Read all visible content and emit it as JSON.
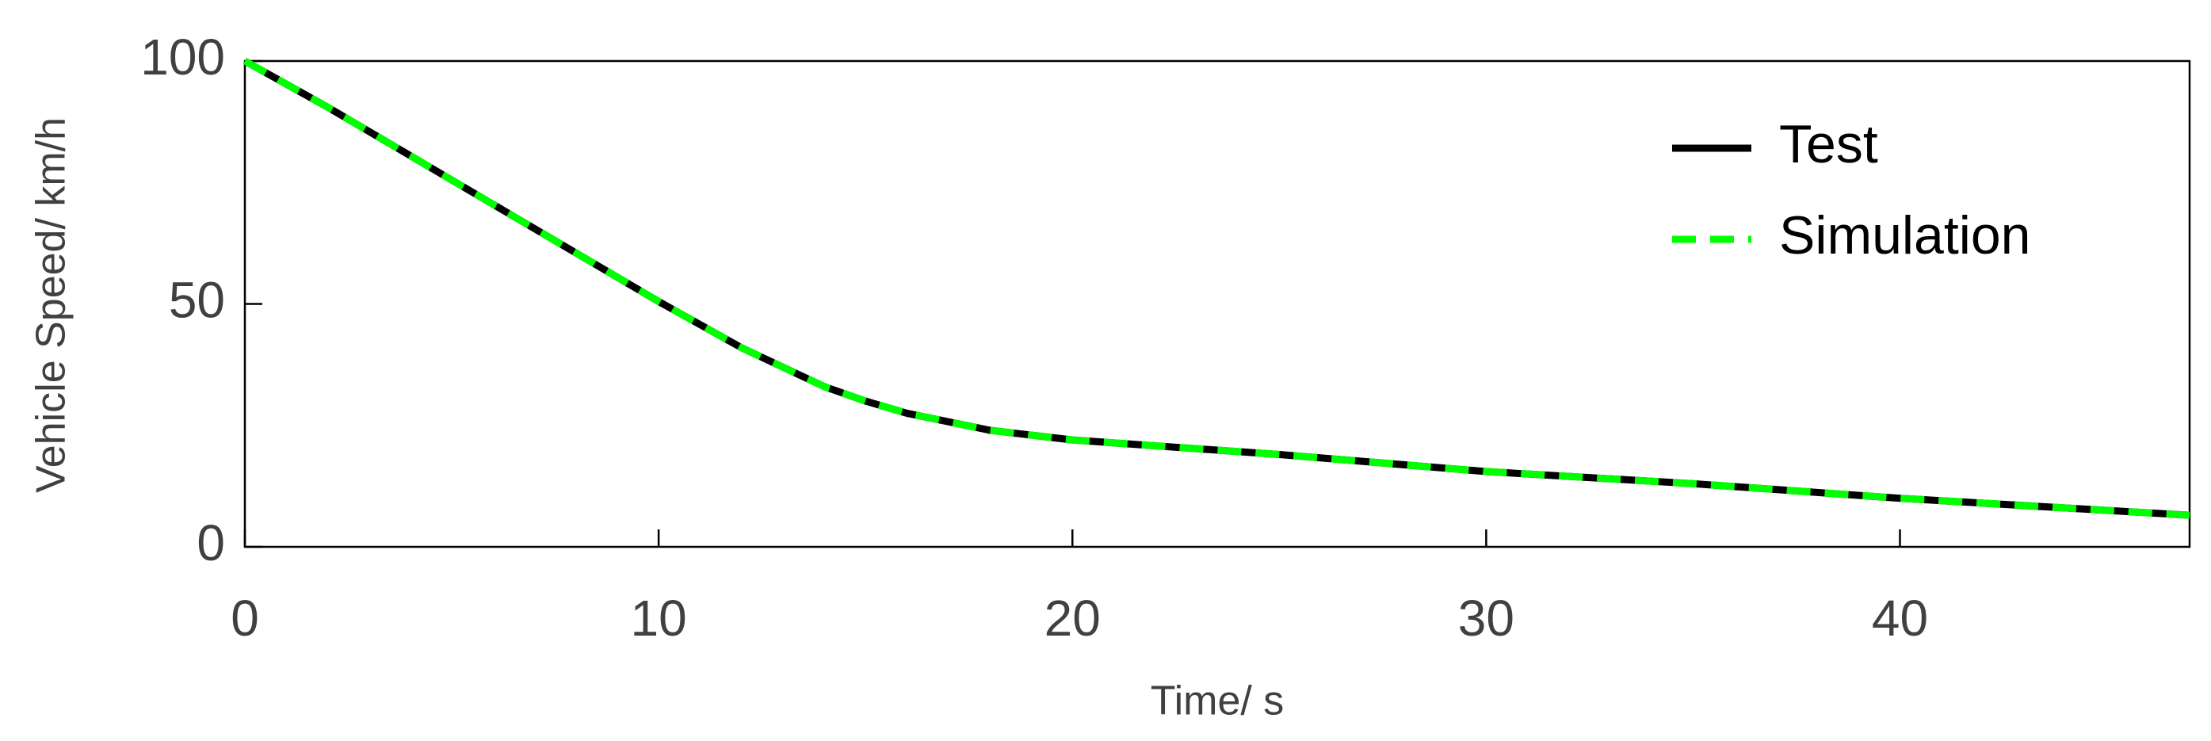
{
  "chart_data": {
    "type": "line",
    "xlabel": "Time/ s",
    "ylabel": "Vehicle Speed/ km/h",
    "x": [
      0,
      2,
      4,
      6,
      8,
      10,
      12,
      13,
      14,
      15,
      16,
      18,
      20,
      25,
      30,
      35,
      40,
      45,
      47
    ],
    "series": [
      {
        "name": "Test",
        "color": "#000000",
        "dash": false,
        "values": [
          100,
          90.5,
          80.5,
          70.5,
          60.5,
          50.5,
          41,
          37,
          33,
          30,
          27.5,
          24,
          22,
          19,
          15.5,
          13,
          10,
          7.5,
          6.5
        ]
      },
      {
        "name": "Simulation",
        "color": "#00ff00",
        "dash": true,
        "values": [
          100,
          90.5,
          80.5,
          70.5,
          60.5,
          50.5,
          41,
          37,
          33,
          30,
          27.5,
          24,
          22,
          19,
          15.5,
          13,
          10,
          7.5,
          6.5
        ]
      }
    ],
    "xlim": [
      0,
      47
    ],
    "xticks": [
      0,
      10,
      20,
      30,
      40
    ],
    "ylim": [
      0,
      100
    ],
    "yticks": [
      0,
      50,
      100
    ],
    "grid": false,
    "legend": "upper right"
  }
}
